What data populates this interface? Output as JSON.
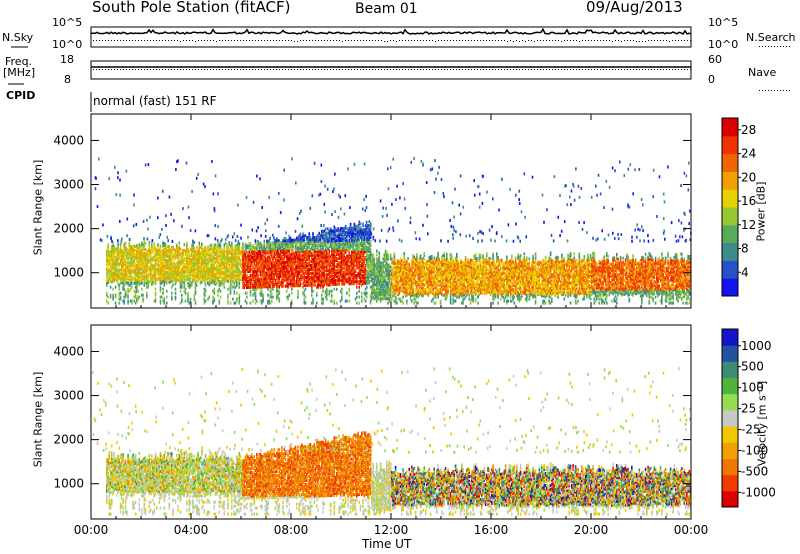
{
  "header": {
    "station": "South Pole Station (fitACF)",
    "beam": "Beam 01",
    "date": "09/Aug/2013"
  },
  "top_panels": {
    "nsky_label": "N.Sky",
    "nsky_ticks": [
      "10^5",
      "10^0"
    ],
    "nsearch_label": "N.Search",
    "nsearch_ticks": [
      "10^5",
      "10^0"
    ],
    "freq_label": "Freq.",
    "freq_unit": "[MHz]",
    "freq_ticks": [
      "18",
      "8"
    ],
    "nave_label": "Nave",
    "nave_ticks": [
      "60",
      "0"
    ],
    "cpid_label": "CPID",
    "cpid_text": "normal (fast) 151 RF"
  },
  "colors": {
    "power_scale": [
      "#1414f0",
      "#2850c8",
      "#3c8c8c",
      "#5aaa5a",
      "#96c832",
      "#e6d200",
      "#f0a000",
      "#f06400",
      "#f03200",
      "#dc0000"
    ],
    "velocity_scale": [
      "#1414c8",
      "#2850a0",
      "#3c8c78",
      "#50b43c",
      "#96dc50",
      "#c8c8c8",
      "#f0c800",
      "#f0a000",
      "#f07800",
      "#f03c00",
      "#dc0000"
    ]
  },
  "chart_data": [
    {
      "type": "heatmap",
      "panel": "power",
      "ylabel": "Slant Range [km]",
      "yticks": [
        "1000",
        "2000",
        "3000",
        "4000"
      ],
      "ylim": [
        200,
        4600
      ],
      "xticks": [
        "00:00",
        "04:00",
        "08:00",
        "12:00",
        "16:00",
        "20:00",
        "00:00"
      ],
      "xlim_hours": [
        0,
        24
      ],
      "colorbar_label": "Power [dB]",
      "colorbar_ticks": [
        "4",
        "8",
        "12",
        "16",
        "20",
        "24",
        "28"
      ],
      "colorbar_range": [
        0,
        30
      ],
      "regions": [
        {
          "t0": 0.5,
          "t1": 11.0,
          "r0": 600,
          "r1": 1800,
          "level": "high"
        },
        {
          "t0": 6.0,
          "t1": 11.0,
          "r0": 700,
          "r1": 1400,
          "level": "strong"
        },
        {
          "t0": 11.5,
          "t1": 24.0,
          "r0": 400,
          "r1": 1400,
          "level": "mixed"
        },
        {
          "t0": 20.0,
          "t1": 23.8,
          "r0": 600,
          "r1": 1300,
          "level": "strong"
        }
      ]
    },
    {
      "type": "heatmap",
      "panel": "velocity",
      "ylabel": "Slant Range [km]",
      "yticks": [
        "1000",
        "2000",
        "3000",
        "4000"
      ],
      "ylim": [
        200,
        4600
      ],
      "xticks": [
        "00:00",
        "04:00",
        "08:00",
        "12:00",
        "16:00",
        "20:00",
        "00:00"
      ],
      "xlabel": "Time UT",
      "xlim_hours": [
        0,
        24
      ],
      "colorbar_label": "Velocity [m s⁻¹]",
      "colorbar_ticks": [
        "1000",
        "500",
        "100",
        "25",
        "-25",
        "-100",
        "-500",
        "-1000"
      ],
      "regions": [
        {
          "t0": 0.5,
          "t1": 11.0,
          "r0": 600,
          "r1": 1800,
          "level": "mixed"
        },
        {
          "t0": 6.0,
          "t1": 11.0,
          "r0": 700,
          "r1": 2000,
          "level": "negative"
        },
        {
          "t0": 11.5,
          "t1": 24.0,
          "r0": 400,
          "r1": 1400,
          "level": "mixed"
        }
      ]
    }
  ]
}
